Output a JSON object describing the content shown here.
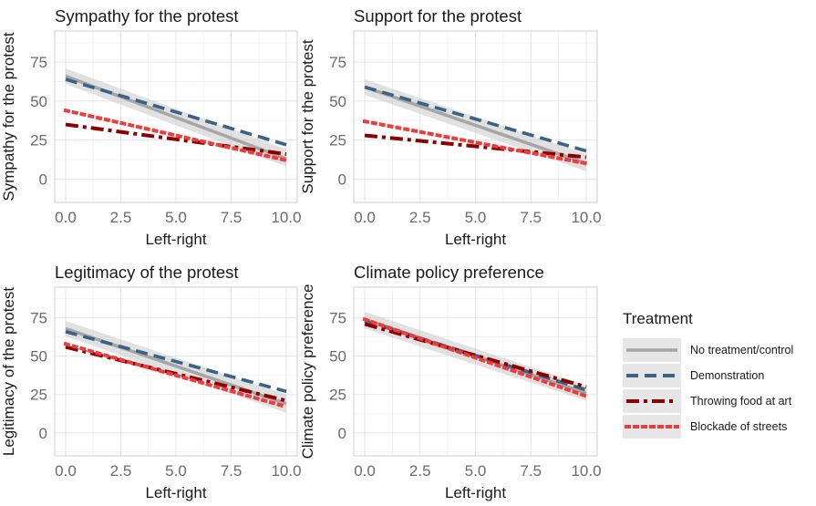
{
  "legend": {
    "title": "Treatment",
    "placement": "right",
    "items": [
      {
        "label": "No treatment/control",
        "color": "#a6a6a6",
        "linetype": "solid"
      },
      {
        "label": "Demonstration",
        "color": "#3a6186",
        "linetype": "dashed"
      },
      {
        "label": "Throwing food at art",
        "color": "#8b0000",
        "linetype": "dashdot"
      },
      {
        "label": "Blockade of streets",
        "color": "#ee3b3b",
        "linetype": "dotted"
      }
    ]
  },
  "chart_data": [
    {
      "type": "line",
      "title": "Sympathy for the protest",
      "xlabel": "Left-right",
      "ylabel": "Sympathy for the protest",
      "xlim": [
        0,
        10
      ],
      "ylim": [
        -15,
        95
      ],
      "xticks": [
        "0.0",
        "2.5",
        "5.0",
        "7.5",
        "10.0"
      ],
      "yticks": [
        "0",
        "25",
        "50",
        "75"
      ],
      "grid": true,
      "series": [
        {
          "name": "No treatment/control",
          "x": [
            0,
            10
          ],
          "y": [
            66,
            13
          ],
          "ci": [
            [
              71,
              61
            ],
            [
              19,
              8
            ]
          ]
        },
        {
          "name": "Demonstration",
          "x": [
            0,
            10
          ],
          "y": [
            64,
            22
          ]
        },
        {
          "name": "Throwing food at art",
          "x": [
            0,
            10
          ],
          "y": [
            35,
            16
          ]
        },
        {
          "name": "Blockade of streets",
          "x": [
            0,
            10
          ],
          "y": [
            44,
            12
          ]
        }
      ]
    },
    {
      "type": "line",
      "title": "Support for the protest",
      "xlabel": "Left-right",
      "ylabel": "Support for the protest",
      "xlim": [
        0,
        10
      ],
      "ylim": [
        -15,
        95
      ],
      "xticks": [
        "0.0",
        "2.5",
        "5.0",
        "7.5",
        "10.0"
      ],
      "yticks": [
        "0",
        "25",
        "50",
        "75"
      ],
      "grid": true,
      "series": [
        {
          "name": "No treatment/control",
          "x": [
            0,
            10
          ],
          "y": [
            59,
            10
          ],
          "ci": [
            [
              64,
              54
            ],
            [
              16,
              5
            ]
          ]
        },
        {
          "name": "Demonstration",
          "x": [
            0,
            10
          ],
          "y": [
            59,
            18
          ]
        },
        {
          "name": "Throwing food at art",
          "x": [
            0,
            10
          ],
          "y": [
            28,
            14
          ]
        },
        {
          "name": "Blockade of streets",
          "x": [
            0,
            10
          ],
          "y": [
            37,
            10
          ]
        }
      ]
    },
    {
      "type": "line",
      "title": "Legitimacy of the protest",
      "xlabel": "Left-right",
      "ylabel": "Legitimacy of the protest",
      "xlim": [
        0,
        10
      ],
      "ylim": [
        -15,
        95
      ],
      "xticks": [
        "0.0",
        "2.5",
        "5.0",
        "7.5",
        "10.0"
      ],
      "yticks": [
        "0",
        "25",
        "50",
        "75"
      ],
      "grid": true,
      "series": [
        {
          "name": "No treatment/control",
          "x": [
            0,
            10
          ],
          "y": [
            68,
            19
          ],
          "ci": [
            [
              73,
              63
            ],
            [
              25,
              13
            ]
          ]
        },
        {
          "name": "Demonstration",
          "x": [
            0,
            10
          ],
          "y": [
            66,
            27
          ]
        },
        {
          "name": "Throwing food at art",
          "x": [
            0,
            10
          ],
          "y": [
            56,
            21
          ]
        },
        {
          "name": "Blockade of streets",
          "x": [
            0,
            10
          ],
          "y": [
            58,
            17
          ]
        }
      ]
    },
    {
      "type": "line",
      "title": "Climate policy preference",
      "xlabel": "Left-right",
      "ylabel": "Climate policy preference",
      "xlim": [
        0,
        10
      ],
      "ylim": [
        -15,
        95
      ],
      "xticks": [
        "0.0",
        "2.5",
        "5.0",
        "7.5",
        "10.0"
      ],
      "yticks": [
        "0",
        "25",
        "50",
        "75"
      ],
      "grid": true,
      "series": [
        {
          "name": "No treatment/control",
          "x": [
            0,
            10
          ],
          "y": [
            74,
            26
          ],
          "ci": [
            [
              79,
              68
            ],
            [
              31,
              21
            ]
          ]
        },
        {
          "name": "Demonstration",
          "x": [
            0,
            10
          ],
          "y": [
            73,
            28
          ]
        },
        {
          "name": "Throwing food at art",
          "x": [
            0,
            10
          ],
          "y": [
            71,
            30
          ]
        },
        {
          "name": "Blockade of streets",
          "x": [
            0,
            10
          ],
          "y": [
            74,
            24
          ]
        }
      ]
    }
  ]
}
